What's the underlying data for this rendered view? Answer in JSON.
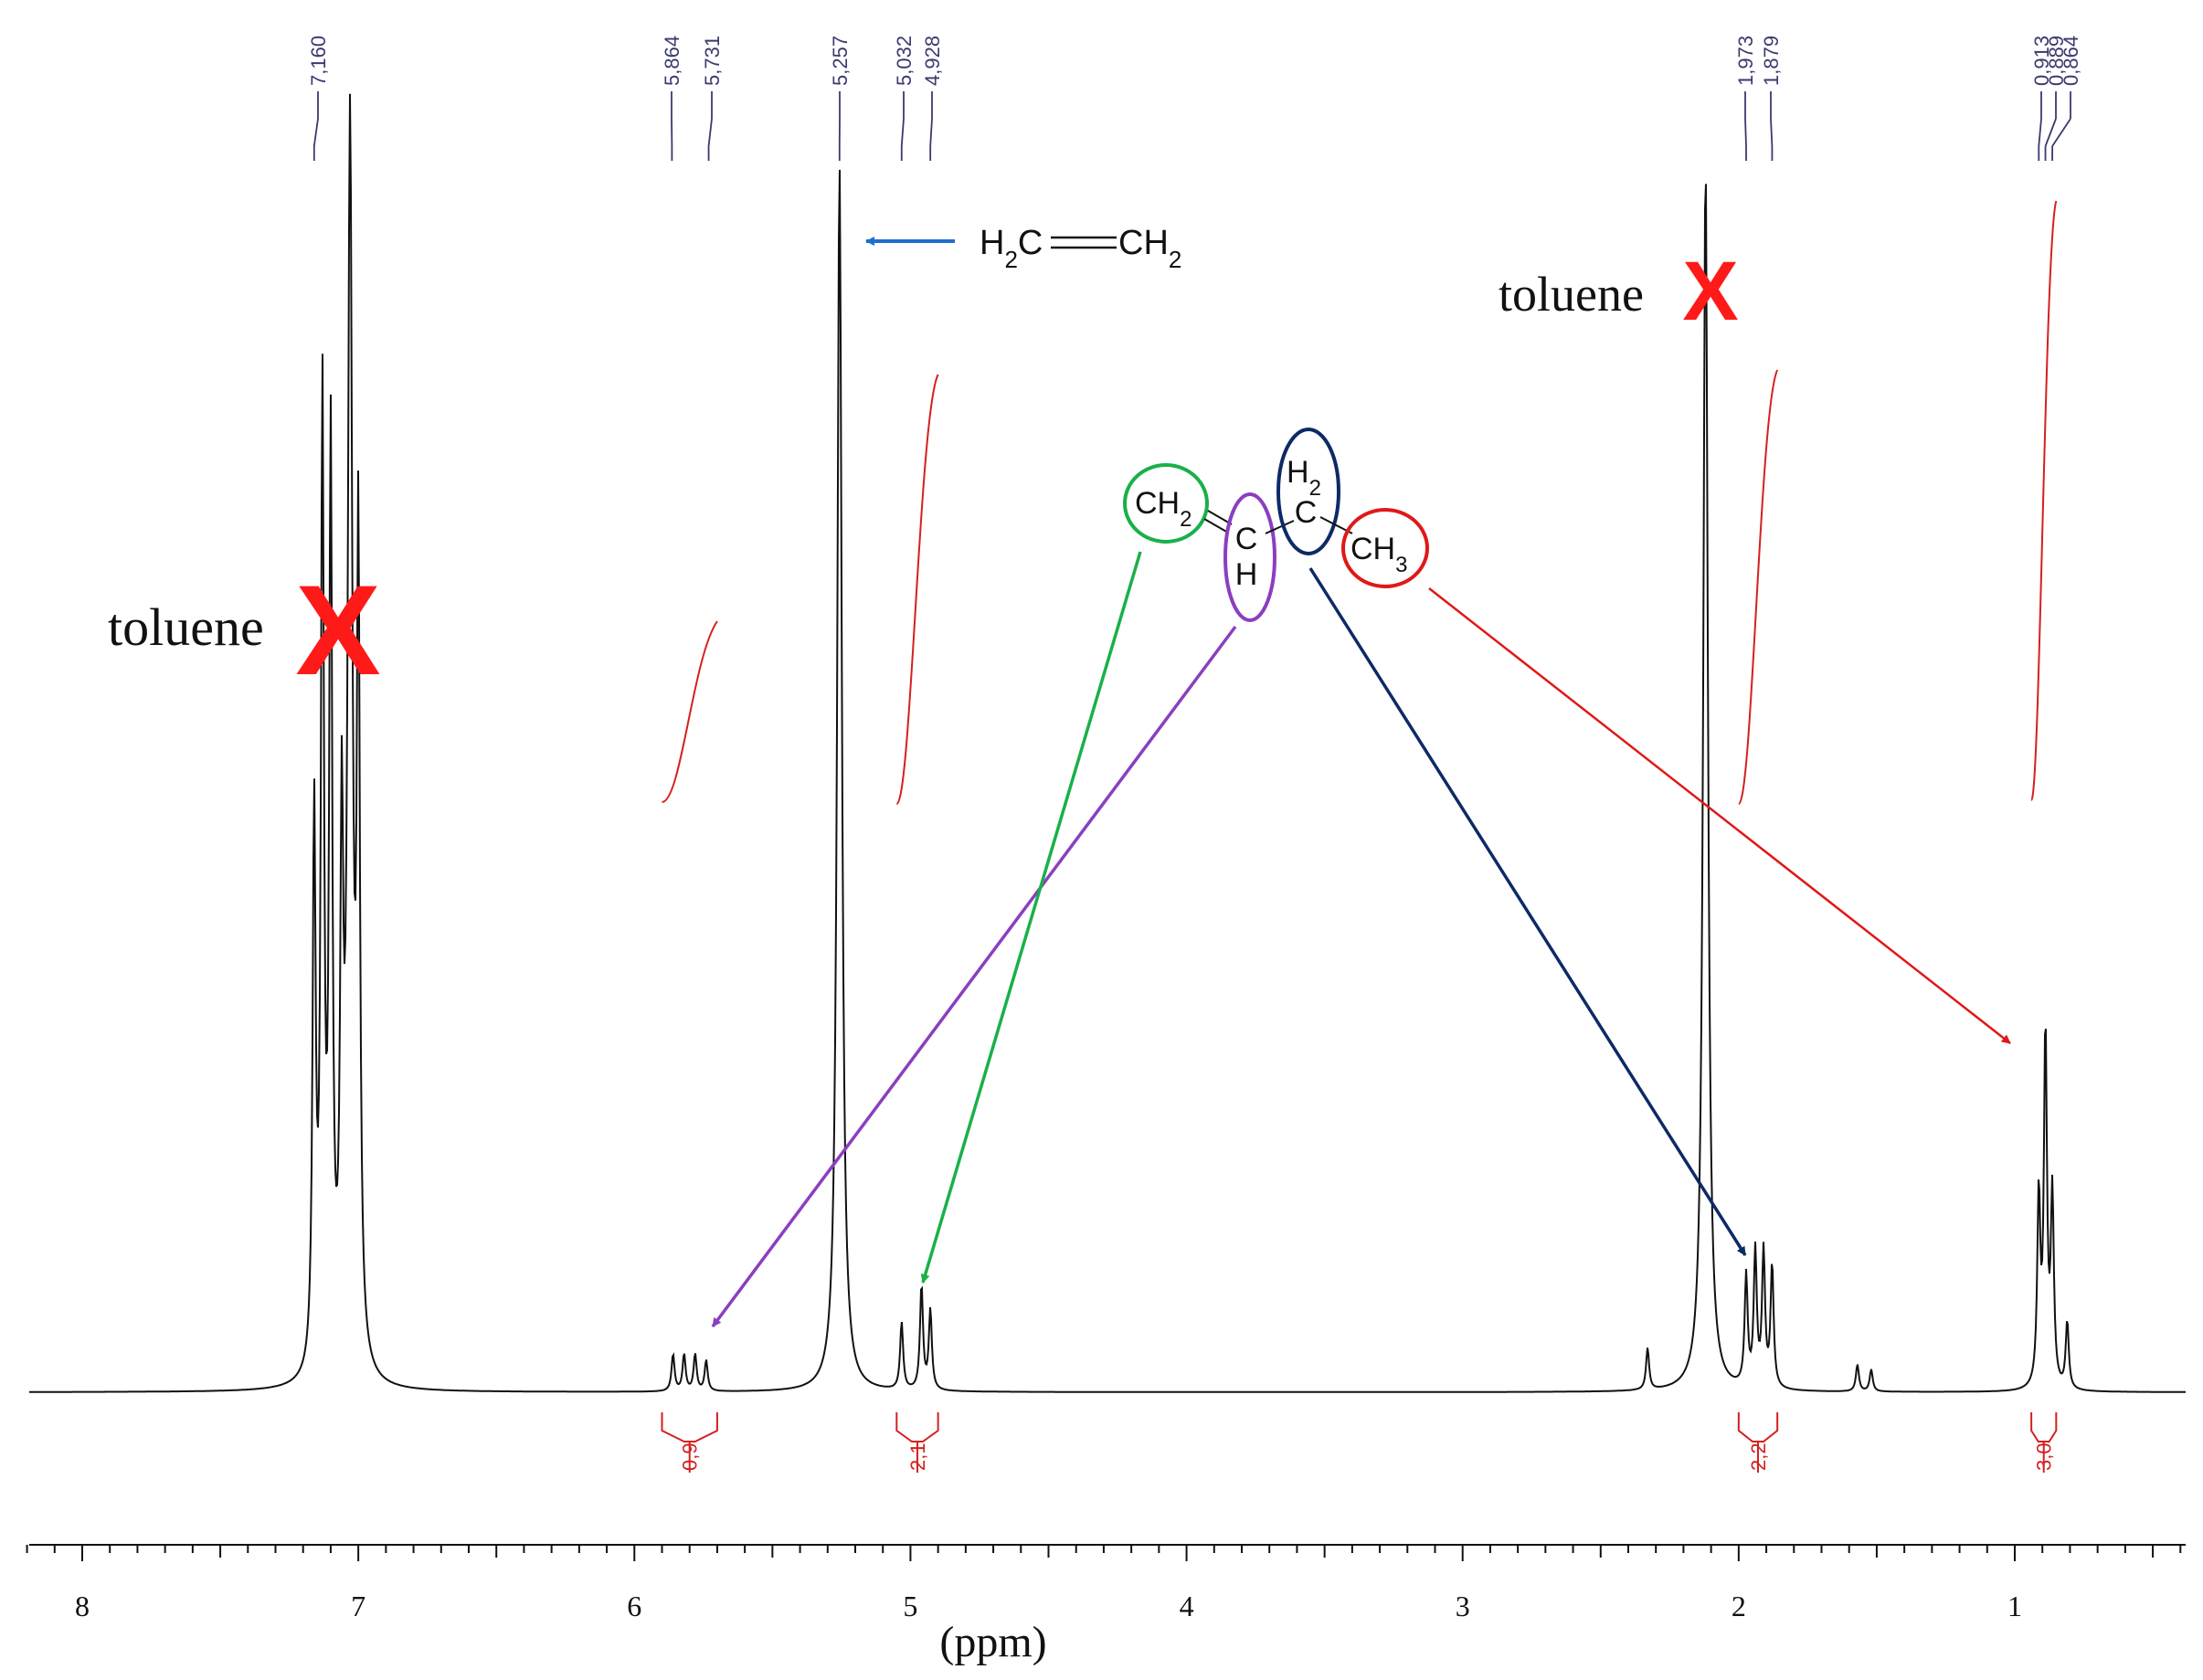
{
  "chart_data": {
    "type": "line",
    "title": "",
    "xlabel": "(ppm)",
    "ylabel": "",
    "xlim": [
      8.2,
      0.35
    ],
    "x_reversed": true,
    "grid": false,
    "legend": "none",
    "x_ticks": [
      8,
      7,
      6,
      5,
      4,
      3,
      2,
      1
    ],
    "x_tick_labels": [
      "8",
      "7",
      "6",
      "5",
      "4",
      "3",
      "2",
      "1"
    ],
    "peak_labels": [
      "7,160",
      "5,864",
      "5,731",
      "5,257",
      "5,032",
      "4,928",
      "1,973",
      "1,879",
      "0,913",
      "0,889",
      "0,864"
    ],
    "peaks": [
      {
        "ppm": 7.16,
        "height": 0.45
      },
      {
        "ppm": 7.13,
        "height": 0.78
      },
      {
        "ppm": 7.1,
        "height": 0.74
      },
      {
        "ppm": 7.06,
        "height": 0.4
      },
      {
        "ppm": 7.03,
        "height": 1.0
      },
      {
        "ppm": 7.0,
        "height": 0.64
      },
      {
        "ppm": 5.86,
        "height": 0.03
      },
      {
        "ppm": 5.82,
        "height": 0.03
      },
      {
        "ppm": 5.78,
        "height": 0.03
      },
      {
        "ppm": 5.74,
        "height": 0.025
      },
      {
        "ppm": 5.257,
        "height": 1.0
      },
      {
        "ppm": 5.032,
        "height": 0.055
      },
      {
        "ppm": 4.96,
        "height": 0.085
      },
      {
        "ppm": 4.928,
        "height": 0.065
      },
      {
        "ppm": 2.33,
        "height": 0.034
      },
      {
        "ppm": 2.12,
        "height": 1.0
      },
      {
        "ppm": 1.973,
        "height": 0.09
      },
      {
        "ppm": 1.94,
        "height": 0.11
      },
      {
        "ppm": 1.91,
        "height": 0.11
      },
      {
        "ppm": 1.879,
        "height": 0.1
      },
      {
        "ppm": 1.57,
        "height": 0.022
      },
      {
        "ppm": 1.52,
        "height": 0.018
      },
      {
        "ppm": 0.913,
        "height": 0.155
      },
      {
        "ppm": 0.889,
        "height": 0.29
      },
      {
        "ppm": 0.864,
        "height": 0.155
      },
      {
        "ppm": 0.81,
        "height": 0.055
      }
    ],
    "integrals": [
      {
        "label": "0,9",
        "from_ppm": 5.9,
        "to_ppm": 5.7
      },
      {
        "label": "2,1",
        "from_ppm": 5.05,
        "to_ppm": 4.9
      },
      {
        "label": "2,2",
        "from_ppm": 2.0,
        "to_ppm": 1.86
      },
      {
        "label": "3,0",
        "from_ppm": 0.94,
        "to_ppm": 0.85
      }
    ],
    "annotations": {
      "toluene_left": "toluene",
      "toluene_right": "toluene",
      "cross_mark": "X",
      "ethylene_h2c": "H",
      "ethylene_h2c_sub": "2",
      "ethylene_c": "C",
      "ethylene_ch2_c": "CH",
      "ethylene_ch2_sub": "2",
      "mol_ch2": "CH",
      "mol_ch2_sub": "2",
      "mol_c": "C",
      "mol_h": "H",
      "mol_h2": "H",
      "mol_h2_sub": "2",
      "mol_c2": "C",
      "mol_ch3": "CH",
      "mol_ch3_sub": "3"
    },
    "colors": {
      "spectrum": "#111111",
      "peak_label": "#3a3a6e",
      "integral": "#d42020",
      "cross": "#ff1a1a",
      "ch2_circle": "#19b04a",
      "ch_ellipse": "#8a3fbf",
      "h2c_ellipse": "#0d2a66",
      "ch3_circle": "#e01818",
      "ethylene_arrow": "#1f6fd0"
    }
  }
}
